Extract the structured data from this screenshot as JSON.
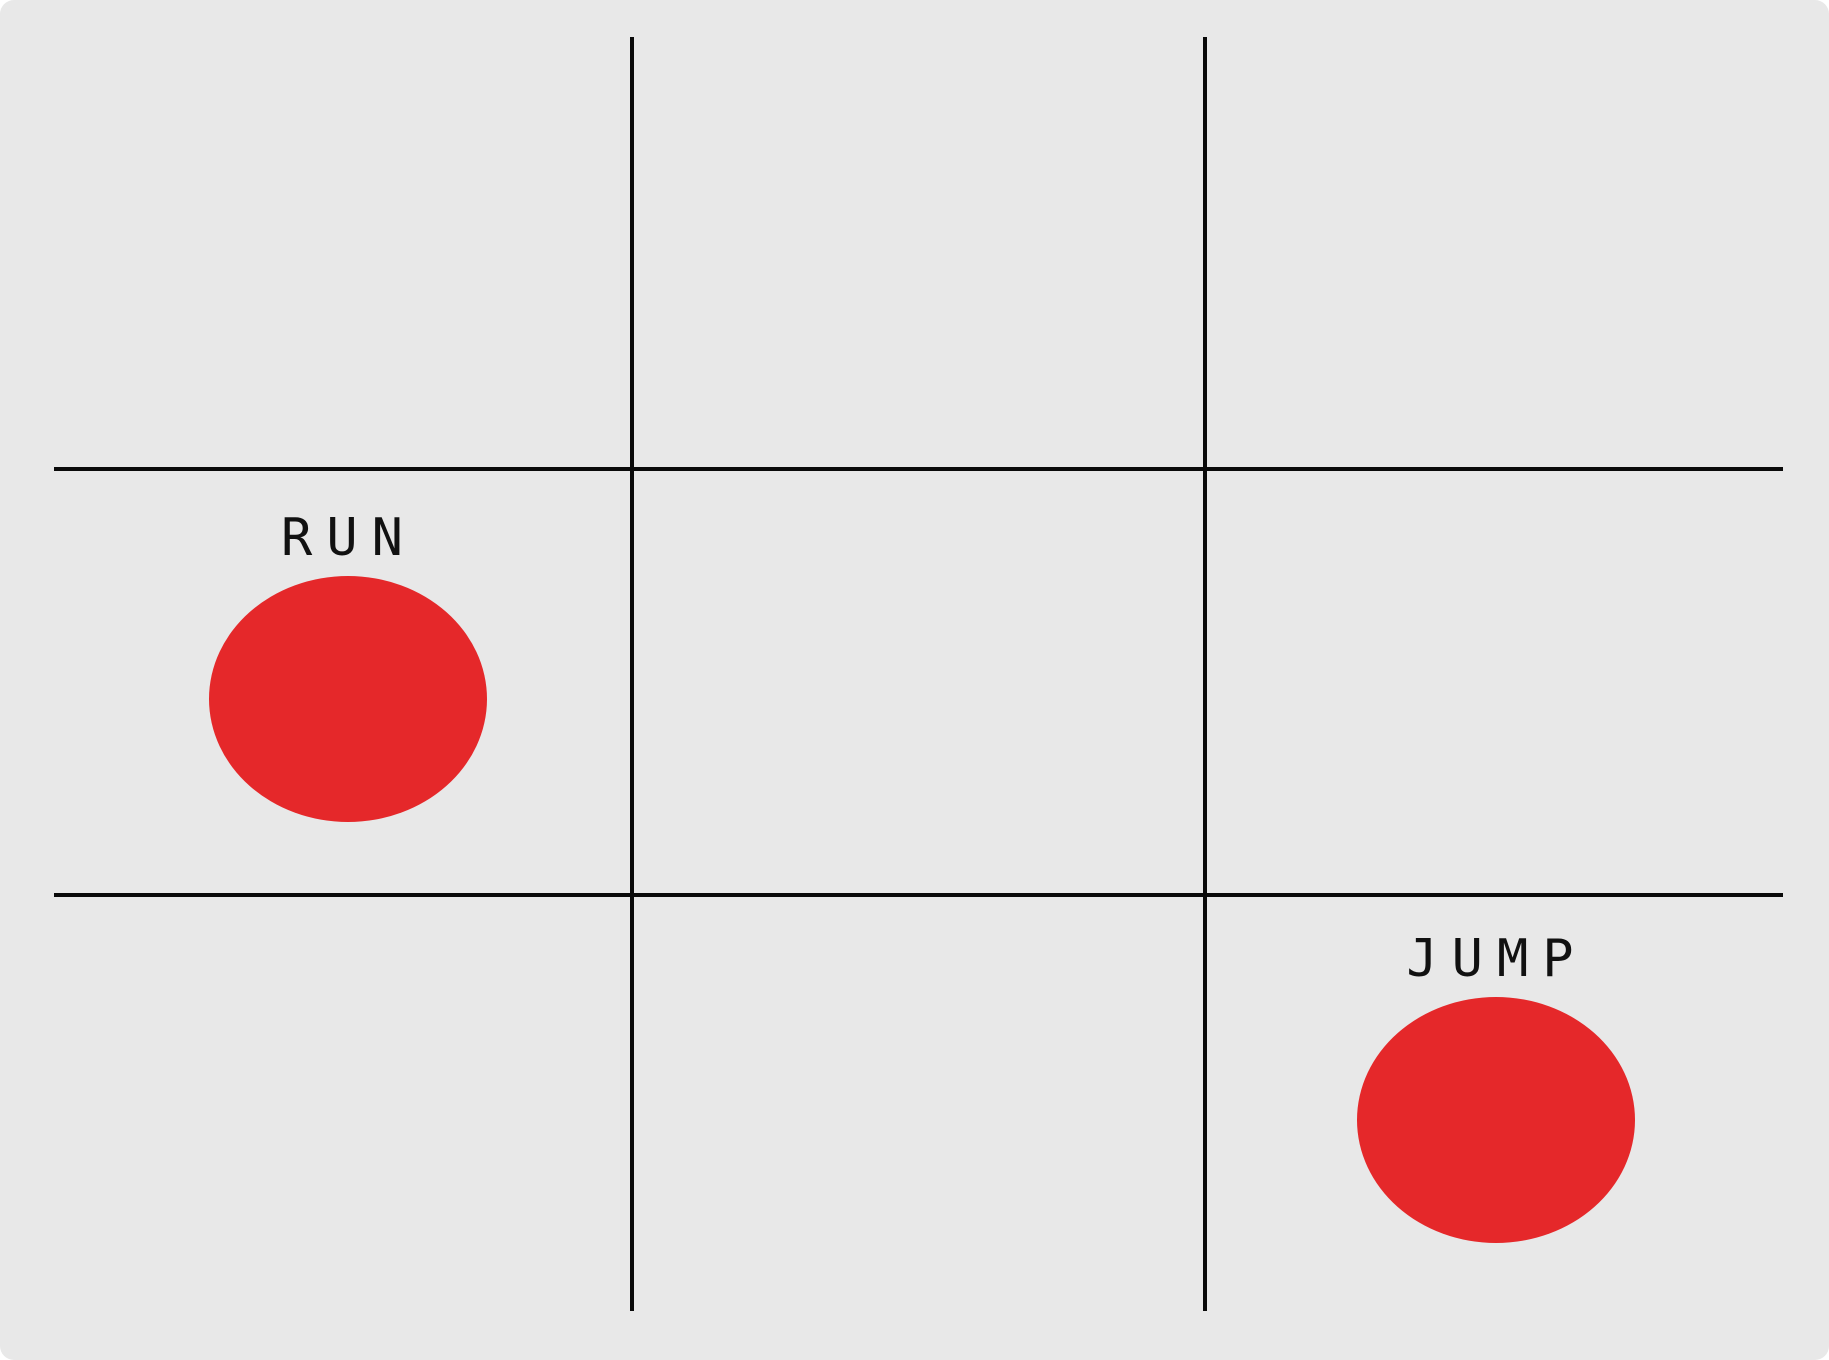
{
  "board": {
    "rows": 3,
    "columns": 3,
    "background_color": "#e8e8e8",
    "line_color": "#0a0a0a"
  },
  "controls": {
    "run": {
      "label": "RUN",
      "row": 2,
      "column": 1,
      "color": "#e5282a"
    },
    "jump": {
      "label": "JUMP",
      "row": 3,
      "column": 3,
      "color": "#e5282a"
    }
  }
}
